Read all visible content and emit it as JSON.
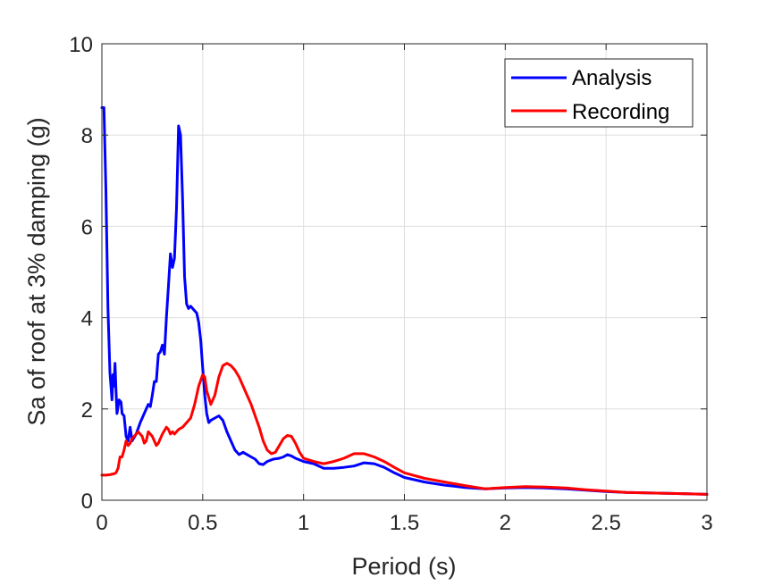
{
  "chart_data": {
    "type": "line",
    "title": "",
    "xlabel": "Period (s)",
    "ylabel": "Sa of roof at 3% damping (g)",
    "xlim": [
      0,
      3
    ],
    "ylim": [
      0,
      10
    ],
    "xticks": [
      0,
      0.5,
      1,
      1.5,
      2,
      2.5,
      3
    ],
    "xtick_labels": [
      "0",
      "0.5",
      "1",
      "1.5",
      "2",
      "2.5",
      "3"
    ],
    "yticks": [
      0,
      2,
      4,
      6,
      8,
      10
    ],
    "ytick_labels": [
      "0",
      "2",
      "4",
      "6",
      "8",
      "10"
    ],
    "grid": true,
    "legend_position": "top-right",
    "series": [
      {
        "name": "Analysis",
        "color": "#0000ff",
        "points": [
          [
            0.0,
            8.6
          ],
          [
            0.01,
            8.6
          ],
          [
            0.02,
            6.8
          ],
          [
            0.03,
            4.2
          ],
          [
            0.04,
            2.8
          ],
          [
            0.05,
            2.2
          ],
          [
            0.055,
            2.75
          ],
          [
            0.06,
            2.5
          ],
          [
            0.065,
            3.0
          ],
          [
            0.07,
            2.4
          ],
          [
            0.075,
            1.9
          ],
          [
            0.085,
            2.2
          ],
          [
            0.095,
            2.15
          ],
          [
            0.1,
            1.9
          ],
          [
            0.11,
            1.85
          ],
          [
            0.12,
            1.4
          ],
          [
            0.13,
            1.3
          ],
          [
            0.14,
            1.6
          ],
          [
            0.15,
            1.3
          ],
          [
            0.17,
            1.45
          ],
          [
            0.19,
            1.7
          ],
          [
            0.21,
            1.9
          ],
          [
            0.23,
            2.1
          ],
          [
            0.24,
            2.05
          ],
          [
            0.25,
            2.3
          ],
          [
            0.26,
            2.6
          ],
          [
            0.27,
            2.6
          ],
          [
            0.28,
            3.2
          ],
          [
            0.29,
            3.25
          ],
          [
            0.3,
            3.4
          ],
          [
            0.31,
            3.2
          ],
          [
            0.32,
            4.0
          ],
          [
            0.33,
            4.7
          ],
          [
            0.34,
            5.4
          ],
          [
            0.35,
            5.1
          ],
          [
            0.36,
            5.3
          ],
          [
            0.37,
            6.4
          ],
          [
            0.38,
            8.2
          ],
          [
            0.39,
            8.0
          ],
          [
            0.4,
            6.6
          ],
          [
            0.41,
            4.9
          ],
          [
            0.42,
            4.3
          ],
          [
            0.43,
            4.2
          ],
          [
            0.44,
            4.25
          ],
          [
            0.45,
            4.2
          ],
          [
            0.46,
            4.15
          ],
          [
            0.47,
            4.1
          ],
          [
            0.48,
            3.9
          ],
          [
            0.49,
            3.5
          ],
          [
            0.5,
            2.9
          ],
          [
            0.51,
            2.3
          ],
          [
            0.52,
            1.9
          ],
          [
            0.53,
            1.7
          ],
          [
            0.54,
            1.75
          ],
          [
            0.56,
            1.8
          ],
          [
            0.58,
            1.85
          ],
          [
            0.6,
            1.75
          ],
          [
            0.62,
            1.5
          ],
          [
            0.64,
            1.3
          ],
          [
            0.66,
            1.1
          ],
          [
            0.68,
            1.0
          ],
          [
            0.7,
            1.05
          ],
          [
            0.72,
            1.0
          ],
          [
            0.74,
            0.95
          ],
          [
            0.76,
            0.9
          ],
          [
            0.78,
            0.8
          ],
          [
            0.8,
            0.78
          ],
          [
            0.82,
            0.85
          ],
          [
            0.85,
            0.9
          ],
          [
            0.88,
            0.92
          ],
          [
            0.9,
            0.95
          ],
          [
            0.92,
            1.0
          ],
          [
            0.94,
            0.97
          ],
          [
            0.96,
            0.92
          ],
          [
            1.0,
            0.85
          ],
          [
            1.05,
            0.8
          ],
          [
            1.1,
            0.7
          ],
          [
            1.15,
            0.7
          ],
          [
            1.2,
            0.72
          ],
          [
            1.25,
            0.75
          ],
          [
            1.3,
            0.82
          ],
          [
            1.35,
            0.8
          ],
          [
            1.4,
            0.72
          ],
          [
            1.45,
            0.6
          ],
          [
            1.5,
            0.5
          ],
          [
            1.6,
            0.4
          ],
          [
            1.7,
            0.33
          ],
          [
            1.8,
            0.28
          ],
          [
            1.9,
            0.25
          ],
          [
            2.0,
            0.27
          ],
          [
            2.1,
            0.28
          ],
          [
            2.2,
            0.27
          ],
          [
            2.3,
            0.25
          ],
          [
            2.4,
            0.22
          ],
          [
            2.5,
            0.19
          ],
          [
            2.6,
            0.17
          ],
          [
            2.7,
            0.16
          ],
          [
            2.8,
            0.15
          ],
          [
            2.9,
            0.14
          ],
          [
            3.0,
            0.13
          ]
        ]
      },
      {
        "name": "Recording",
        "color": "#ff0000",
        "points": [
          [
            0.0,
            0.55
          ],
          [
            0.02,
            0.55
          ],
          [
            0.04,
            0.56
          ],
          [
            0.06,
            0.58
          ],
          [
            0.07,
            0.6
          ],
          [
            0.08,
            0.7
          ],
          [
            0.09,
            0.95
          ],
          [
            0.1,
            0.95
          ],
          [
            0.11,
            1.1
          ],
          [
            0.12,
            1.3
          ],
          [
            0.13,
            1.2
          ],
          [
            0.14,
            1.25
          ],
          [
            0.15,
            1.35
          ],
          [
            0.16,
            1.4
          ],
          [
            0.17,
            1.45
          ],
          [
            0.18,
            1.5
          ],
          [
            0.19,
            1.45
          ],
          [
            0.2,
            1.4
          ],
          [
            0.21,
            1.25
          ],
          [
            0.22,
            1.3
          ],
          [
            0.23,
            1.5
          ],
          [
            0.24,
            1.45
          ],
          [
            0.25,
            1.4
          ],
          [
            0.26,
            1.3
          ],
          [
            0.27,
            1.2
          ],
          [
            0.28,
            1.25
          ],
          [
            0.3,
            1.45
          ],
          [
            0.32,
            1.6
          ],
          [
            0.33,
            1.55
          ],
          [
            0.34,
            1.45
          ],
          [
            0.35,
            1.5
          ],
          [
            0.36,
            1.45
          ],
          [
            0.38,
            1.55
          ],
          [
            0.4,
            1.6
          ],
          [
            0.42,
            1.7
          ],
          [
            0.44,
            1.8
          ],
          [
            0.46,
            2.1
          ],
          [
            0.48,
            2.5
          ],
          [
            0.5,
            2.75
          ],
          [
            0.51,
            2.7
          ],
          [
            0.52,
            2.4
          ],
          [
            0.54,
            2.1
          ],
          [
            0.56,
            2.3
          ],
          [
            0.58,
            2.7
          ],
          [
            0.6,
            2.95
          ],
          [
            0.62,
            3.0
          ],
          [
            0.64,
            2.95
          ],
          [
            0.66,
            2.85
          ],
          [
            0.68,
            2.7
          ],
          [
            0.7,
            2.5
          ],
          [
            0.72,
            2.3
          ],
          [
            0.74,
            2.1
          ],
          [
            0.76,
            1.85
          ],
          [
            0.78,
            1.6
          ],
          [
            0.8,
            1.3
          ],
          [
            0.82,
            1.1
          ],
          [
            0.84,
            1.02
          ],
          [
            0.86,
            1.05
          ],
          [
            0.88,
            1.2
          ],
          [
            0.9,
            1.35
          ],
          [
            0.92,
            1.42
          ],
          [
            0.94,
            1.4
          ],
          [
            0.96,
            1.25
          ],
          [
            0.98,
            1.05
          ],
          [
            1.0,
            0.92
          ],
          [
            1.05,
            0.85
          ],
          [
            1.1,
            0.8
          ],
          [
            1.15,
            0.85
          ],
          [
            1.2,
            0.92
          ],
          [
            1.25,
            1.02
          ],
          [
            1.3,
            1.02
          ],
          [
            1.35,
            0.95
          ],
          [
            1.4,
            0.85
          ],
          [
            1.45,
            0.72
          ],
          [
            1.5,
            0.6
          ],
          [
            1.6,
            0.48
          ],
          [
            1.7,
            0.4
          ],
          [
            1.8,
            0.32
          ],
          [
            1.9,
            0.25
          ],
          [
            2.0,
            0.28
          ],
          [
            2.1,
            0.3
          ],
          [
            2.2,
            0.29
          ],
          [
            2.3,
            0.27
          ],
          [
            2.4,
            0.23
          ],
          [
            2.5,
            0.2
          ],
          [
            2.6,
            0.17
          ],
          [
            2.7,
            0.16
          ],
          [
            2.8,
            0.15
          ],
          [
            2.9,
            0.14
          ],
          [
            3.0,
            0.13
          ]
        ]
      }
    ]
  }
}
